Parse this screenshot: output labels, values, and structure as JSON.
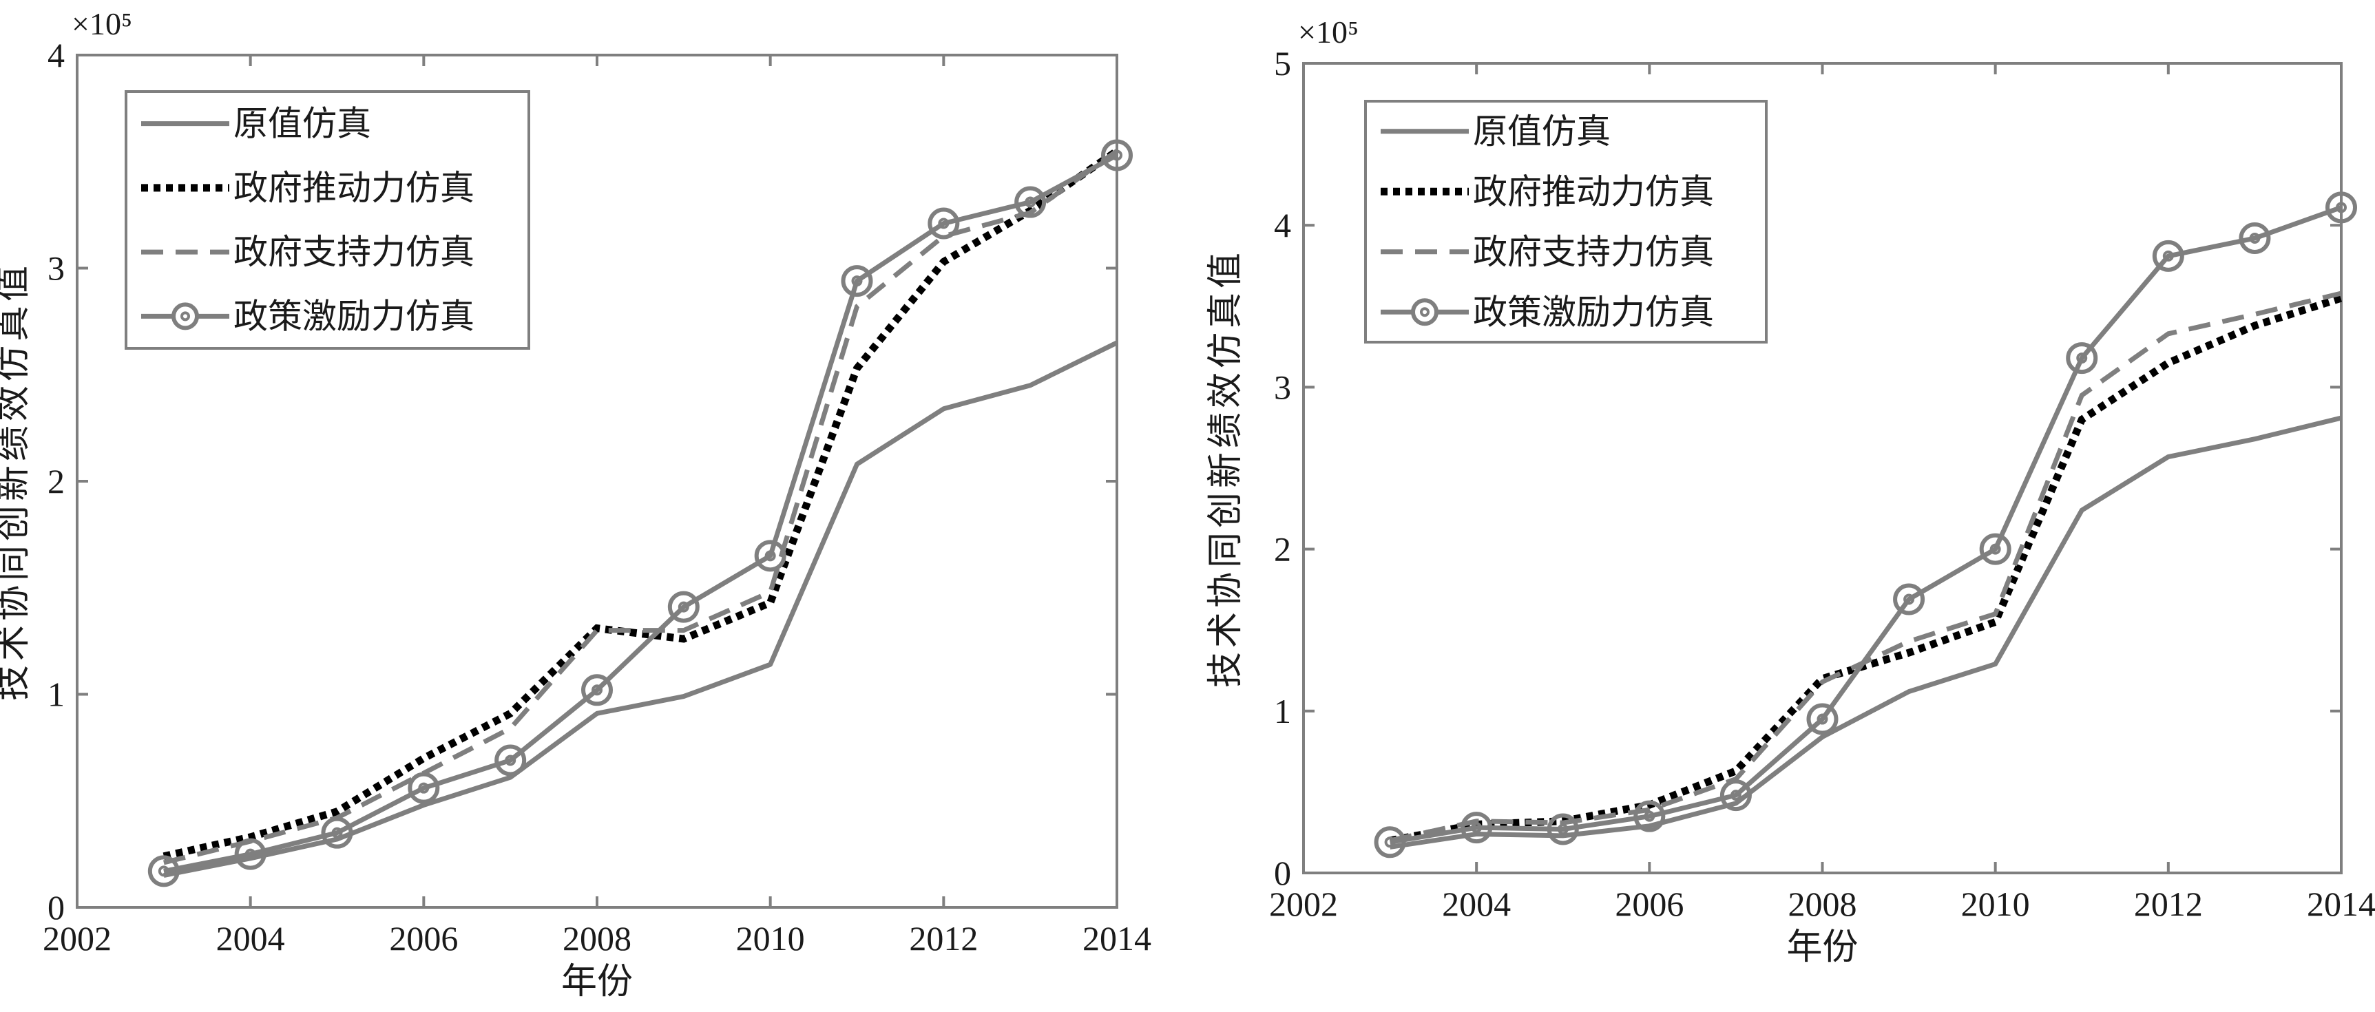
{
  "colors": {
    "series_gray": "#7f7f7f",
    "series_black": "#000000",
    "axes": "#7f7f7f",
    "text": "#1a1a1a",
    "background": "#ffffff"
  },
  "chart_data": [
    {
      "type": "line",
      "xlabel": "年份",
      "ylabel": "技术协同创新绩效仿真值",
      "y_multiplier_label": "×10⁵",
      "xlim": [
        2002,
        2014
      ],
      "ylim": [
        0,
        4
      ],
      "x_ticks": [
        2002,
        2004,
        2006,
        2008,
        2010,
        2012,
        2014
      ],
      "y_ticks": [
        0,
        1,
        2,
        3,
        4
      ],
      "grid": false,
      "legend_position": "top-left",
      "x": [
        2003,
        2004,
        2005,
        2006,
        2007,
        2008,
        2009,
        2010,
        2011,
        2012,
        2013,
        2014
      ],
      "series": [
        {
          "name": "原值仿真",
          "style": "solid",
          "color": "#7f7f7f",
          "values": [
            0.15,
            0.23,
            0.32,
            0.48,
            0.61,
            0.91,
            0.99,
            1.14,
            2.08,
            2.34,
            2.45,
            2.65
          ]
        },
        {
          "name": "政府推动力仿真",
          "style": "dotted",
          "color": "#000000",
          "values": [
            0.24,
            0.33,
            0.45,
            0.7,
            0.91,
            1.31,
            1.26,
            1.43,
            2.53,
            3.03,
            3.27,
            3.55
          ]
        },
        {
          "name": "政府支持力仿真",
          "style": "dashed",
          "color": "#7f7f7f",
          "values": [
            0.21,
            0.31,
            0.42,
            0.63,
            0.84,
            1.3,
            1.3,
            1.48,
            2.82,
            3.15,
            3.26,
            3.55
          ]
        },
        {
          "name": "政策激励力仿真",
          "style": "circle",
          "color": "#7f7f7f",
          "values": [
            0.17,
            0.25,
            0.35,
            0.56,
            0.69,
            1.02,
            1.41,
            1.65,
            2.94,
            3.21,
            3.31,
            3.53
          ]
        }
      ]
    },
    {
      "type": "line",
      "xlabel": "年份",
      "ylabel": "技术协同创新绩效仿真值",
      "y_multiplier_label": "×10⁵",
      "xlim": [
        2002,
        2014
      ],
      "ylim": [
        0,
        5
      ],
      "x_ticks": [
        2002,
        2004,
        2006,
        2008,
        2010,
        2012,
        2014
      ],
      "y_ticks": [
        0,
        1,
        2,
        3,
        4,
        5
      ],
      "grid": false,
      "legend_position": "top-left",
      "x": [
        2003,
        2004,
        2005,
        2006,
        2007,
        2008,
        2009,
        2010,
        2011,
        2012,
        2013,
        2014
      ],
      "series": [
        {
          "name": "原值仿真",
          "style": "solid",
          "color": "#7f7f7f",
          "values": [
            0.16,
            0.24,
            0.23,
            0.29,
            0.43,
            0.84,
            1.12,
            1.29,
            2.24,
            2.57,
            2.68,
            2.81
          ]
        },
        {
          "name": "政府推动力仿真",
          "style": "dotted",
          "color": "#000000",
          "values": [
            0.2,
            0.3,
            0.32,
            0.42,
            0.63,
            1.2,
            1.36,
            1.55,
            2.8,
            3.15,
            3.38,
            3.55
          ]
        },
        {
          "name": "政府支持力仿真",
          "style": "dashed",
          "color": "#7f7f7f",
          "values": [
            0.2,
            0.32,
            0.31,
            0.39,
            0.58,
            1.18,
            1.43,
            1.6,
            2.95,
            3.33,
            3.45,
            3.58
          ]
        },
        {
          "name": "政策激励力仿真",
          "style": "circle",
          "color": "#7f7f7f",
          "values": [
            0.19,
            0.28,
            0.27,
            0.35,
            0.48,
            0.95,
            1.69,
            2.0,
            3.18,
            3.81,
            3.92,
            4.11
          ]
        }
      ]
    }
  ]
}
